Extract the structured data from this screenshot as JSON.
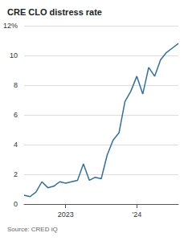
{
  "chart_data": {
    "type": "line",
    "title": "CRE CLO distress rate",
    "source": "Source: CRED iQ",
    "categories": [
      null,
      null,
      null,
      null,
      null,
      null,
      null,
      "2023",
      null,
      null,
      null,
      null,
      null,
      null,
      null,
      null,
      null,
      null,
      null,
      "'24",
      null,
      null,
      null,
      null,
      null,
      null,
      null
    ],
    "values": [
      0.6,
      0.5,
      0.8,
      1.5,
      1.1,
      1.2,
      1.5,
      1.4,
      1.5,
      1.6,
      2.7,
      1.6,
      1.8,
      1.7,
      3.3,
      4.3,
      4.8,
      6.9,
      7.6,
      8.6,
      7.4,
      9.2,
      8.6,
      9.7,
      10.2,
      10.5,
      10.8
    ],
    "color": "#2f6fa3",
    "ylim": [
      0,
      12
    ],
    "yticks": [
      0,
      2,
      4,
      6,
      8,
      10,
      {
        "value": 12,
        "label": "12%"
      }
    ],
    "grid": true
  }
}
